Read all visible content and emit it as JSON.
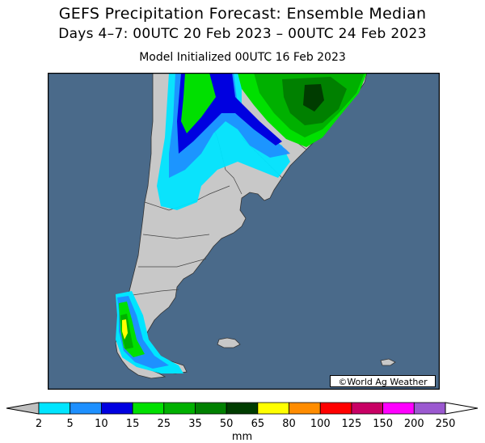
{
  "header": {
    "title": "GEFS Precipitation Forecast: Ensemble Median",
    "subtitle": "Days 4–7: 00UTC 20 Feb 2023 – 00UTC 24 Feb 2023",
    "init": "Model Initialized 00UTC 16 Feb 2023"
  },
  "credit": "©World Ag Weather",
  "legend": {
    "unit": "mm",
    "below_color": "#c0c0c0",
    "above_color": "#ffffff",
    "bins": [
      {
        "label": "2",
        "color": "#00e5ff"
      },
      {
        "label": "5",
        "color": "#1e90ff"
      },
      {
        "label": "10",
        "color": "#0000e0"
      },
      {
        "label": "15",
        "color": "#00e000"
      },
      {
        "label": "25",
        "color": "#00b000"
      },
      {
        "label": "35",
        "color": "#008000"
      },
      {
        "label": "50",
        "color": "#003c00"
      },
      {
        "label": "65",
        "color": "#ffff00"
      },
      {
        "label": "80",
        "color": "#ff8c00"
      },
      {
        "label": "100",
        "color": "#ff0000"
      },
      {
        "label": "125",
        "color": "#c80064"
      },
      {
        "label": "150",
        "color": "#ff00ff"
      },
      {
        "label": "200",
        "color": "#9b59d0"
      },
      {
        "label": "250",
        "color": ""
      }
    ]
  },
  "map": {
    "ocean_color": "#4a6a8a",
    "land_color": "#c8c8c8",
    "border_color": "#444444"
  }
}
